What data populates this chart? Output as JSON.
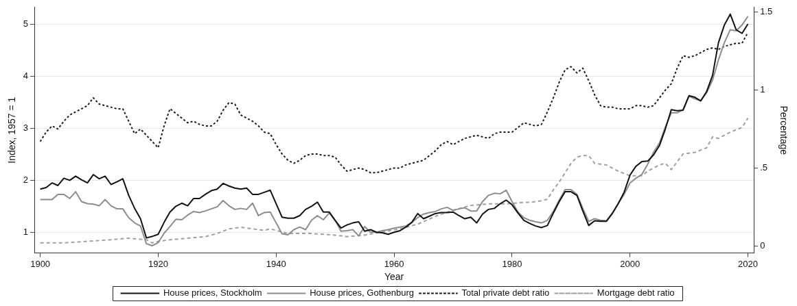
{
  "chart_data": {
    "type": "line",
    "xlabel": "Year",
    "ylabel": "Index, 1957 = 1",
    "y2label": "Percentage",
    "xlim": [
      1899,
      2021
    ],
    "xticks": [
      1900,
      1920,
      1940,
      1960,
      1980,
      2000,
      2020
    ],
    "ylim": [
      0.6,
      5.33
    ],
    "yticks": [
      1,
      2,
      3,
      4,
      5
    ],
    "y2lim": [
      -0.045,
      1.53
    ],
    "y2ticks": [
      0,
      {
        "value": 0.5,
        "label": ".5"
      },
      1,
      1.5
    ],
    "grid": "y",
    "legend": "bottom",
    "marker": "none",
    "x": [
      1900,
      1901,
      1902,
      1903,
      1904,
      1905,
      1906,
      1907,
      1908,
      1909,
      1910,
      1911,
      1912,
      1913,
      1914,
      1915,
      1916,
      1917,
      1918,
      1919,
      1920,
      1921,
      1922,
      1923,
      1924,
      1925,
      1926,
      1927,
      1928,
      1929,
      1930,
      1931,
      1932,
      1933,
      1934,
      1935,
      1936,
      1937,
      1938,
      1939,
      1940,
      1941,
      1942,
      1943,
      1944,
      1945,
      1946,
      1947,
      1948,
      1949,
      1950,
      1951,
      1952,
      1953,
      1954,
      1955,
      1956,
      1957,
      1958,
      1959,
      1960,
      1961,
      1962,
      1963,
      1964,
      1965,
      1966,
      1967,
      1968,
      1969,
      1970,
      1971,
      1972,
      1973,
      1974,
      1975,
      1976,
      1977,
      1978,
      1979,
      1980,
      1981,
      1982,
      1983,
      1984,
      1985,
      1986,
      1987,
      1988,
      1989,
      1990,
      1991,
      1992,
      1993,
      1994,
      1995,
      1996,
      1997,
      1998,
      1999,
      2000,
      2001,
      2002,
      2003,
      2004,
      2005,
      2006,
      2007,
      2008,
      2009,
      2010,
      2011,
      2012,
      2013,
      2014,
      2015,
      2016,
      2017,
      2018,
      2019,
      2020
    ],
    "series": [
      {
        "name": "House prices, Stockholm",
        "color": "#111111",
        "line_style": "solid",
        "values": [
          1.83,
          1.86,
          1.95,
          1.9,
          2.04,
          2.0,
          2.08,
          2.01,
          1.95,
          2.11,
          2.03,
          2.08,
          1.92,
          1.97,
          2.03,
          1.71,
          1.46,
          1.26,
          0.89,
          0.92,
          0.96,
          1.19,
          1.39,
          1.5,
          1.56,
          1.51,
          1.65,
          1.65,
          1.73,
          1.8,
          1.83,
          1.94,
          1.89,
          1.85,
          1.83,
          1.85,
          1.73,
          1.73,
          1.77,
          1.81,
          1.55,
          1.29,
          1.27,
          1.27,
          1.32,
          1.44,
          1.5,
          1.58,
          1.39,
          1.39,
          1.23,
          1.08,
          1.14,
          1.18,
          1.2,
          1.02,
          1.05,
          1.0,
          0.99,
          0.96,
          1.0,
          1.03,
          1.1,
          1.19,
          1.36,
          1.26,
          1.31,
          1.36,
          1.38,
          1.38,
          1.39,
          1.32,
          1.26,
          1.29,
          1.18,
          1.35,
          1.44,
          1.46,
          1.55,
          1.62,
          1.53,
          1.37,
          1.23,
          1.17,
          1.12,
          1.09,
          1.13,
          1.37,
          1.59,
          1.78,
          1.78,
          1.71,
          1.41,
          1.13,
          1.22,
          1.21,
          1.21,
          1.36,
          1.55,
          1.77,
          2.1,
          2.27,
          2.36,
          2.37,
          2.49,
          2.67,
          2.99,
          3.36,
          3.34,
          3.35,
          3.63,
          3.6,
          3.53,
          3.71,
          4.02,
          4.65,
          4.99,
          5.2,
          4.9,
          4.83,
          5.01
        ]
      },
      {
        "name": "House prices, Gothenburg",
        "color": "#8c8c8c",
        "line_style": "solid",
        "values": [
          1.63,
          1.63,
          1.63,
          1.73,
          1.73,
          1.65,
          1.78,
          1.59,
          1.55,
          1.54,
          1.51,
          1.63,
          1.51,
          1.45,
          1.45,
          1.28,
          1.18,
          1.12,
          0.78,
          0.74,
          0.8,
          0.98,
          1.11,
          1.25,
          1.24,
          1.33,
          1.4,
          1.38,
          1.41,
          1.45,
          1.49,
          1.61,
          1.51,
          1.44,
          1.46,
          1.44,
          1.56,
          1.32,
          1.38,
          1.39,
          1.18,
          0.97,
          0.95,
          1.05,
          1.1,
          1.05,
          1.23,
          1.32,
          1.24,
          1.37,
          1.23,
          1.02,
          1.03,
          1.05,
          0.93,
          1.11,
          1.0,
          1.0,
          1.03,
          1.05,
          1.08,
          1.1,
          1.12,
          1.19,
          1.28,
          1.35,
          1.38,
          1.4,
          1.45,
          1.48,
          1.42,
          1.45,
          1.47,
          1.41,
          1.41,
          1.59,
          1.71,
          1.75,
          1.74,
          1.81,
          1.59,
          1.39,
          1.28,
          1.23,
          1.2,
          1.18,
          1.23,
          1.4,
          1.62,
          1.82,
          1.82,
          1.73,
          1.46,
          1.21,
          1.26,
          1.23,
          1.22,
          1.37,
          1.55,
          1.73,
          1.95,
          2.04,
          2.11,
          2.31,
          2.54,
          2.72,
          3.03,
          3.3,
          3.3,
          3.36,
          3.62,
          3.57,
          3.53,
          3.69,
          3.93,
          4.32,
          4.65,
          4.9,
          4.88,
          4.99,
          5.16
        ]
      },
      {
        "name": "Total private debt ratio",
        "color": "#1a1a1a",
        "line_style": "dotted",
        "axis": "y2",
        "values": [
          0.67,
          0.73,
          0.77,
          0.75,
          0.8,
          0.84,
          0.86,
          0.88,
          0.9,
          0.95,
          0.91,
          0.9,
          0.89,
          0.88,
          0.88,
          0.8,
          0.72,
          0.75,
          0.71,
          0.67,
          0.63,
          0.77,
          0.88,
          0.85,
          0.82,
          0.79,
          0.8,
          0.78,
          0.77,
          0.77,
          0.8,
          0.87,
          0.92,
          0.91,
          0.84,
          0.82,
          0.8,
          0.77,
          0.73,
          0.72,
          0.65,
          0.59,
          0.55,
          0.53,
          0.55,
          0.58,
          0.59,
          0.59,
          0.58,
          0.58,
          0.57,
          0.52,
          0.48,
          0.49,
          0.5,
          0.49,
          0.47,
          0.47,
          0.48,
          0.49,
          0.5,
          0.5,
          0.52,
          0.53,
          0.54,
          0.55,
          0.58,
          0.61,
          0.65,
          0.67,
          0.65,
          0.67,
          0.69,
          0.7,
          0.71,
          0.7,
          0.69,
          0.72,
          0.73,
          0.73,
          0.73,
          0.76,
          0.79,
          0.78,
          0.77,
          0.78,
          0.86,
          0.95,
          1.05,
          1.13,
          1.15,
          1.11,
          1.14,
          1.06,
          0.97,
          0.9,
          0.89,
          0.89,
          0.88,
          0.88,
          0.88,
          0.9,
          0.9,
          0.89,
          0.9,
          0.95,
          1.0,
          1.04,
          1.14,
          1.22,
          1.21,
          1.22,
          1.24,
          1.26,
          1.27,
          1.26,
          1.28,
          1.29,
          1.3,
          1.3,
          1.37
        ]
      },
      {
        "name": "Mortgage debt ratio",
        "color": "#a0a0a0",
        "line_style": "dashed",
        "axis": "y2",
        "x": [
          1900,
          1904,
          1908,
          1912,
          1915,
          1918,
          1919,
          1920,
          1922,
          1925,
          1928,
          1930,
          1932,
          1934,
          1936,
          1938,
          1939,
          1942,
          1946,
          1950,
          1952,
          1955,
          1958,
          1961,
          1964,
          1967,
          1970,
          1973,
          1976,
          1979,
          1982,
          1983,
          1985,
          1986,
          1987,
          1988,
          1989,
          1990,
          1991,
          1992,
          1993,
          1994,
          1996,
          1998,
          2000,
          2002,
          2003,
          2005,
          2006,
          2007,
          2008,
          2009,
          2011,
          2013,
          2014,
          2015,
          2016,
          2017,
          2019,
          2020
        ],
        "values": [
          0.02,
          0.02,
          0.03,
          0.04,
          0.05,
          0.04,
          0.02,
          0.03,
          0.04,
          0.05,
          0.06,
          0.08,
          0.11,
          0.12,
          0.11,
          0.1,
          0.11,
          0.08,
          0.08,
          0.07,
          0.06,
          0.07,
          0.09,
          0.11,
          0.14,
          0.19,
          0.23,
          0.26,
          0.27,
          0.27,
          0.28,
          0.28,
          0.29,
          0.3,
          0.36,
          0.41,
          0.47,
          0.53,
          0.57,
          0.58,
          0.58,
          0.53,
          0.52,
          0.48,
          0.45,
          0.45,
          0.48,
          0.52,
          0.53,
          0.49,
          0.54,
          0.59,
          0.6,
          0.63,
          0.7,
          0.69,
          0.71,
          0.73,
          0.76,
          0.82
        ]
      }
    ]
  }
}
